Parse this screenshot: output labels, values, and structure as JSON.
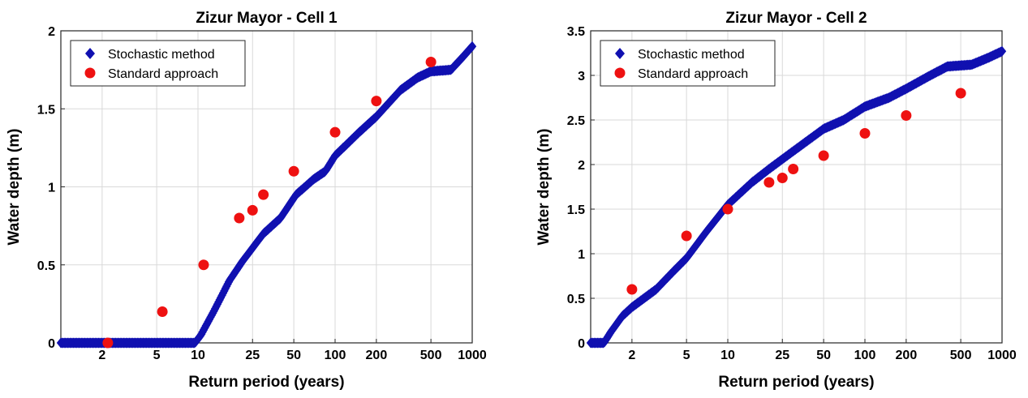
{
  "colors": {
    "stochastic": "#1010b0",
    "standard": "#ee1111",
    "grid": "#d9d9d9",
    "axis": "#262626"
  },
  "chart_data": [
    {
      "type": "scatter",
      "title": "Zizur Mayor - Cell 1",
      "xlabel": "Return period (years)",
      "ylabel": "Water depth (m)",
      "x_scale": "log",
      "xlim": [
        1,
        1000
      ],
      "ylim": [
        0,
        2
      ],
      "grid": true,
      "legend_position": "top-left",
      "x_ticks": [
        2,
        5,
        10,
        25,
        50,
        100,
        200,
        500,
        1000
      ],
      "x_tick_labels": [
        "2",
        "5",
        "10",
        "25",
        "50",
        "100",
        "200",
        "500",
        "1000"
      ],
      "y_ticks": [
        0,
        0.5,
        1,
        1.5,
        2
      ],
      "y_tick_labels": [
        "0",
        "0.5",
        "1",
        "1.5",
        "2"
      ],
      "series": [
        {
          "name": "Stochastic method",
          "marker": "diamond",
          "curve": [
            [
              1.0,
              0.0
            ],
            [
              9.5,
              0.0
            ],
            [
              10.5,
              0.05
            ],
            [
              13,
              0.2
            ],
            [
              17,
              0.4
            ],
            [
              21,
              0.52
            ],
            [
              30,
              0.7
            ],
            [
              40,
              0.8
            ],
            [
              52,
              0.95
            ],
            [
              70,
              1.05
            ],
            [
              85,
              1.1
            ],
            [
              100,
              1.2
            ],
            [
              150,
              1.35
            ],
            [
              200,
              1.45
            ],
            [
              300,
              1.62
            ],
            [
              400,
              1.7
            ],
            [
              500,
              1.74
            ],
            [
              700,
              1.75
            ],
            [
              850,
              1.83
            ],
            [
              1000,
              1.9
            ]
          ]
        },
        {
          "name": "Standard approach",
          "marker": "circle",
          "points": [
            [
              2.2,
              0.0
            ],
            [
              5.5,
              0.2
            ],
            [
              11,
              0.5
            ],
            [
              20,
              0.8
            ],
            [
              25,
              0.85
            ],
            [
              30,
              0.95
            ],
            [
              50,
              1.1
            ],
            [
              100,
              1.35
            ],
            [
              200,
              1.55
            ],
            [
              500,
              1.8
            ]
          ]
        }
      ]
    },
    {
      "type": "scatter",
      "title": "Zizur Mayor - Cell 2",
      "xlabel": "Return period (years)",
      "ylabel": "Water depth (m)",
      "x_scale": "log",
      "xlim": [
        1,
        1000
      ],
      "ylim": [
        0,
        3.5
      ],
      "grid": true,
      "legend_position": "top-left",
      "x_ticks": [
        2,
        5,
        10,
        25,
        50,
        100,
        200,
        500,
        1000
      ],
      "x_tick_labels": [
        "2",
        "5",
        "10",
        "25",
        "50",
        "100",
        "200",
        "500",
        "1000"
      ],
      "y_ticks": [
        0,
        0.5,
        1,
        1.5,
        2,
        2.5,
        3,
        3.5
      ],
      "y_tick_labels": [
        "0",
        "0.5",
        "1",
        "1.5",
        "2",
        "2.5",
        "3",
        "3.5"
      ],
      "series": [
        {
          "name": "Stochastic method",
          "marker": "diamond",
          "curve": [
            [
              1.0,
              0.0
            ],
            [
              1.25,
              0.0
            ],
            [
              1.4,
              0.12
            ],
            [
              1.7,
              0.3
            ],
            [
              2,
              0.4
            ],
            [
              3,
              0.6
            ],
            [
              4,
              0.8
            ],
            [
              5,
              0.95
            ],
            [
              7,
              1.25
            ],
            [
              10,
              1.55
            ],
            [
              15,
              1.8
            ],
            [
              20,
              1.95
            ],
            [
              30,
              2.15
            ],
            [
              50,
              2.4
            ],
            [
              70,
              2.5
            ],
            [
              100,
              2.65
            ],
            [
              150,
              2.75
            ],
            [
              200,
              2.85
            ],
            [
              300,
              3.0
            ],
            [
              400,
              3.1
            ],
            [
              600,
              3.12
            ],
            [
              800,
              3.2
            ],
            [
              1000,
              3.27
            ]
          ]
        },
        {
          "name": "Standard approach",
          "marker": "circle",
          "points": [
            [
              2,
              0.6
            ],
            [
              5,
              1.2
            ],
            [
              10,
              1.5
            ],
            [
              20,
              1.8
            ],
            [
              25,
              1.85
            ],
            [
              30,
              1.95
            ],
            [
              50,
              2.1
            ],
            [
              100,
              2.35
            ],
            [
              200,
              2.55
            ],
            [
              500,
              2.8
            ]
          ]
        }
      ]
    }
  ]
}
